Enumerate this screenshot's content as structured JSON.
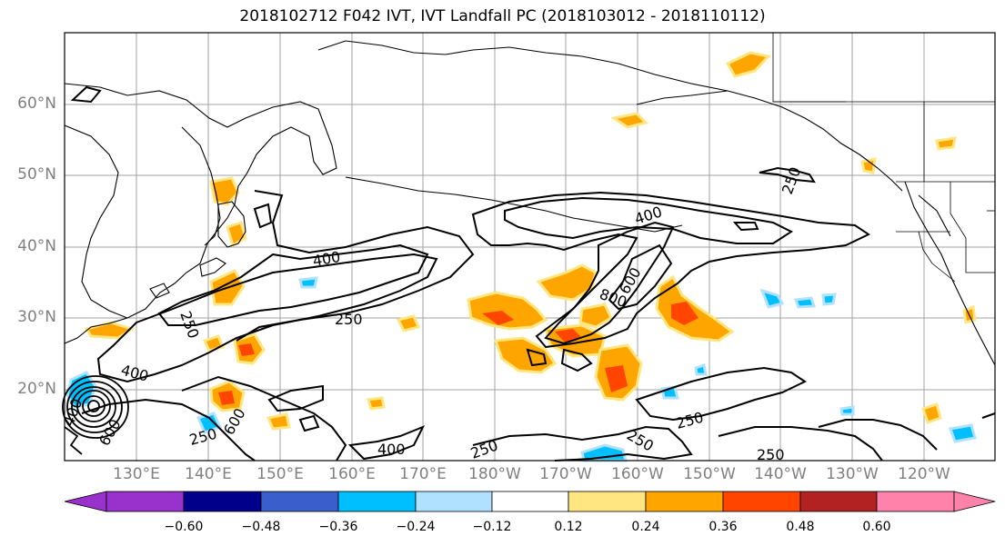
{
  "title": "2018102712 F042 IVT, IVT Landfall PC (2018103012 - 2018110112)",
  "lat_labels": [
    "60°N",
    "50°N",
    "40°N",
    "30°N",
    "20°N"
  ],
  "lon_labels": [
    "130°E",
    "140°E",
    "150°E",
    "160°E",
    "170°E",
    "180°W",
    "170°W",
    "160°W",
    "150°W",
    "140°W",
    "130°W",
    "120°W"
  ],
  "colorbar": {
    "colors": [
      "#9932cc",
      "#00008b",
      "#3a5fcd",
      "#00bfff",
      "#b0e2ff",
      "#ffffff",
      "#ffe680",
      "#ffa500",
      "#ff4500",
      "#b22222",
      "#ff82ab"
    ],
    "ticks": [
      "−0.60",
      "−0.48",
      "−0.36",
      "−0.24",
      "−0.12",
      "0.12",
      "0.24",
      "0.36",
      "0.48",
      "0.60"
    ]
  },
  "contour_labels": [
    "400",
    "250",
    "400",
    "250",
    "800",
    "600",
    "400",
    "250",
    "250",
    "400",
    "250",
    "250",
    "250",
    "600",
    "250",
    "400",
    "600"
  ],
  "colors": {
    "positive_high": "#ff4500",
    "positive_mid": "#ffa500",
    "positive_low": "#ffe680",
    "negative_mid": "#00bfff",
    "negative_low": "#b0e2ff",
    "grid": "#a0a0a0",
    "axis_label": "#808080"
  }
}
